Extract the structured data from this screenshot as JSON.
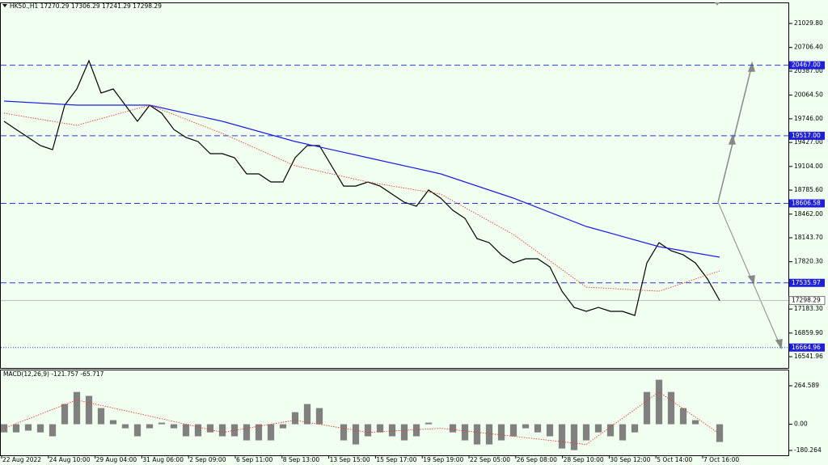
{
  "chart_data": [
    {
      "type": "candle-line",
      "title": "HK50.,H1  17270.29 17306.29 17241.29 17298.29",
      "ylim": [
        16390,
        21302
      ],
      "yticks": [
        {
          "value": 21029.8,
          "label": "21029.80"
        },
        {
          "value": 20706.4,
          "label": "20706.40"
        },
        {
          "value": 20387,
          "label": "20387.00"
        },
        {
          "value": 20064.5,
          "label": "20064.50"
        },
        {
          "value": 19746,
          "label": "19746.00"
        },
        {
          "value": 19427,
          "label": "19427.00"
        },
        {
          "value": 19104,
          "label": "19104.00"
        },
        {
          "value": 18785.6,
          "label": "18785.60"
        },
        {
          "value": 18462,
          "label": "18462.00"
        },
        {
          "value": 18143.7,
          "label": "18143.70"
        },
        {
          "value": 17820.3,
          "label": "17820.30"
        },
        {
          "value": 17183.3,
          "label": "17183.30"
        },
        {
          "value": 16859.9,
          "label": "16859.90"
        },
        {
          "value": 16541.96,
          "label": "16541.96"
        }
      ],
      "xlabels": [
        "22 Aug 2022",
        "24 Aug 10:00",
        "29 Aug 04:00",
        "31 Aug 06:00",
        "2 Sep 09:00",
        "6 Sep 11:00",
        "8 Sep 13:00",
        "13 Sep 15:00",
        "15 Sep 17:00",
        "19 Sep 19:00",
        "22 Sep 05:00",
        "26 Sep 08:00",
        "28 Sep 10:00",
        "30 Sep 12:00",
        "5 Oct 14:00",
        "7 Oct 16:00"
      ],
      "levels": [
        {
          "value": 20467,
          "label": "20467.00",
          "style": "dashed"
        },
        {
          "value": 19517,
          "label": "19517.00",
          "style": "dashed"
        },
        {
          "value": 18606.58,
          "label": "18606.58",
          "style": "dashed"
        },
        {
          "value": 17535.97,
          "label": "17535.97",
          "style": "dashed"
        },
        {
          "value": 16664.96,
          "label": "16664.96",
          "style": "dotted"
        }
      ],
      "current": {
        "value": 17298.29,
        "label": "17298.29"
      },
      "series": [
        {
          "color": "#000000",
          "style": "solid",
          "values": [
            19712,
            19602,
            19494,
            19385,
            19330,
            19929,
            20147,
            20528,
            20093,
            20147,
            19929,
            19712,
            19929,
            19821,
            19602,
            19494,
            19439,
            19276,
            19276,
            19222,
            19004,
            19004,
            18895,
            18895,
            19222,
            19385,
            19385,
            19113,
            18840,
            18840,
            18895,
            18840,
            18731,
            18622,
            18568,
            18786,
            18677,
            18514,
            18405,
            18132,
            18077,
            17914,
            17805,
            17860,
            17860,
            17751,
            17424,
            17206,
            17152,
            17206,
            17152,
            17152,
            17097,
            17805,
            18077,
            17968,
            17914,
            17805,
            17588,
            17298
          ]
        },
        {
          "color": "#1f1fe0",
          "style": "solid",
          "x": [
            0,
            6,
            12,
            18,
            24,
            30,
            36,
            42,
            48,
            54,
            59
          ],
          "values": [
            19984,
            19930,
            19930,
            19712,
            19440,
            19222,
            19004,
            18677,
            18296,
            18024,
            17882
          ]
        },
        {
          "color": "#e0402a",
          "style": "dotted",
          "x": [
            0,
            6,
            12,
            18,
            24,
            30,
            36,
            42,
            48,
            54,
            59
          ],
          "values": [
            19821,
            19657,
            19930,
            19549,
            19113,
            18895,
            18732,
            18187,
            17479,
            17424,
            17697
          ]
        }
      ]
    },
    {
      "type": "macd",
      "title": "MACD(12,26,9) -121.757 -65.717",
      "ylim": [
        -213.6,
        370.3
      ],
      "yticks": [
        264.589,
        {
          "value": 0,
          "label": "0.00"
        },
        -180.264
      ],
      "series": [
        {
          "color": "#808080",
          "values": [
            -56,
            -56,
            -44,
            -56,
            -83,
            139,
            222,
            195,
            111,
            28,
            -28,
            -83,
            -28,
            11,
            -28,
            -83,
            -83,
            -56,
            -83,
            -83,
            -111,
            -111,
            -111,
            -28,
            83,
            139,
            111,
            0,
            -111,
            -139,
            -83,
            -56,
            -83,
            -111,
            -83,
            11,
            0,
            -56,
            -111,
            -139,
            -139,
            -111,
            -83,
            -28,
            -56,
            -83,
            -167,
            -178,
            -111,
            -56,
            -83,
            -111,
            -56,
            222,
            306,
            222,
            111,
            28,
            0,
            -122
          ]
        },
        {
          "color": "#e0402a",
          "style": "dotted",
          "x": [
            0,
            6,
            12,
            18,
            24,
            30,
            36,
            42,
            48,
            54,
            59
          ],
          "values": [
            -28,
            167,
            56,
            -56,
            28,
            -56,
            -28,
            -83,
            -139,
            222,
            -66
          ]
        }
      ]
    }
  ]
}
